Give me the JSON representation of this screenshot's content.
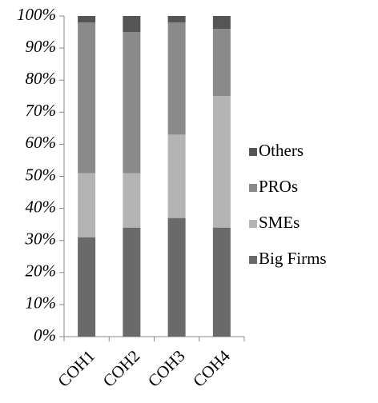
{
  "chart_data": {
    "type": "stacked-bar",
    "categories": [
      "COH1",
      "COH2",
      "COH3",
      "COH4"
    ],
    "series": [
      {
        "name": "Big Firms",
        "color": "#6a6a6a",
        "values": [
          31,
          34,
          37,
          34
        ]
      },
      {
        "name": "SMEs",
        "color": "#b4b4b4",
        "values": [
          20,
          17,
          26,
          41
        ]
      },
      {
        "name": "PROs",
        "color": "#8a8a8a",
        "values": [
          47,
          44,
          35,
          21
        ]
      },
      {
        "name": "Others",
        "color": "#555555",
        "values": [
          2,
          5,
          2,
          4
        ]
      }
    ],
    "ylim": [
      0,
      100
    ],
    "yticks": [
      {
        "value": 0,
        "label": "0%"
      },
      {
        "value": 10,
        "label": "10%"
      },
      {
        "value": 20,
        "label": "20%"
      },
      {
        "value": 30,
        "label": "30%"
      },
      {
        "value": 40,
        "label": "40%"
      },
      {
        "value": 50,
        "label": "50%"
      },
      {
        "value": 60,
        "label": "60%"
      },
      {
        "value": 70,
        "label": "70%"
      },
      {
        "value": 80,
        "label": "80%"
      },
      {
        "value": 90,
        "label": "90%"
      },
      {
        "value": 100,
        "label": "100%"
      }
    ],
    "legend": "right"
  }
}
